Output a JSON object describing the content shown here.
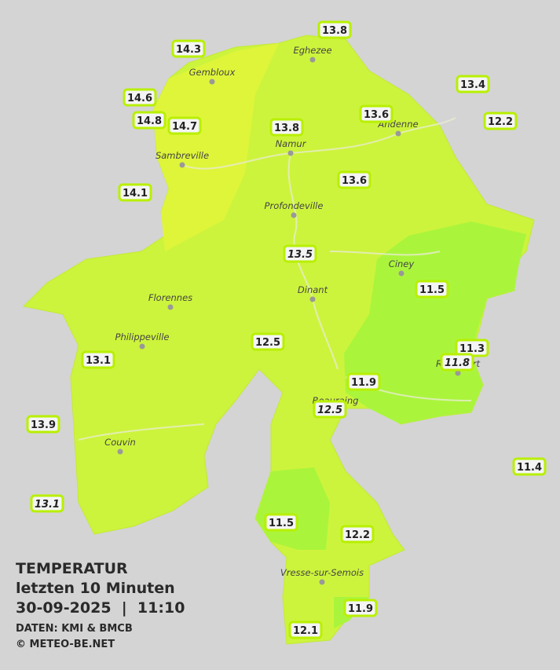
{
  "title": {
    "line1": "TEMPERATUR",
    "line2": "letzten 10 Minuten",
    "line3": "30-09-2025  |  11:10",
    "source": "DATEN: KMI & BMCB",
    "copyright": "© METEO-BE.NET"
  },
  "cities": [
    {
      "label": "Eghezee"
    },
    {
      "label": "Gembloux"
    },
    {
      "label": "Andenne"
    },
    {
      "label": "Namur"
    },
    {
      "label": "Sambreville"
    },
    {
      "label": "Profondeville"
    },
    {
      "label": "Ciney"
    },
    {
      "label": "Dinant"
    },
    {
      "label": "Florennes"
    },
    {
      "label": "Philippeville"
    },
    {
      "label": "Rochefort"
    },
    {
      "label": "Beauraing"
    },
    {
      "label": "Couvin"
    },
    {
      "label": "Vresse-sur-Semois"
    }
  ],
  "stations": [
    {
      "value": 14.3
    },
    {
      "value": 13.8
    },
    {
      "value": 14.6
    },
    {
      "value": 14.8
    },
    {
      "value": 14.7
    },
    {
      "value": 13.8
    },
    {
      "value": 13.6
    },
    {
      "value": 13.4
    },
    {
      "value": 12.2
    },
    {
      "value": 14.1
    },
    {
      "value": 13.6
    },
    {
      "value": 13.5,
      "italic": true
    },
    {
      "value": 11.5
    },
    {
      "value": 12.5
    },
    {
      "value": 13.1
    },
    {
      "value": 11.3
    },
    {
      "value": 11.8,
      "italic": true
    },
    {
      "value": 11.9
    },
    {
      "value": 12.5,
      "italic": true
    },
    {
      "value": 13.9
    },
    {
      "value": 11.4
    },
    {
      "value": 13.1,
      "italic": true
    },
    {
      "value": 11.5
    },
    {
      "value": 12.2
    },
    {
      "value": 11.9
    },
    {
      "value": 12.1
    }
  ]
}
